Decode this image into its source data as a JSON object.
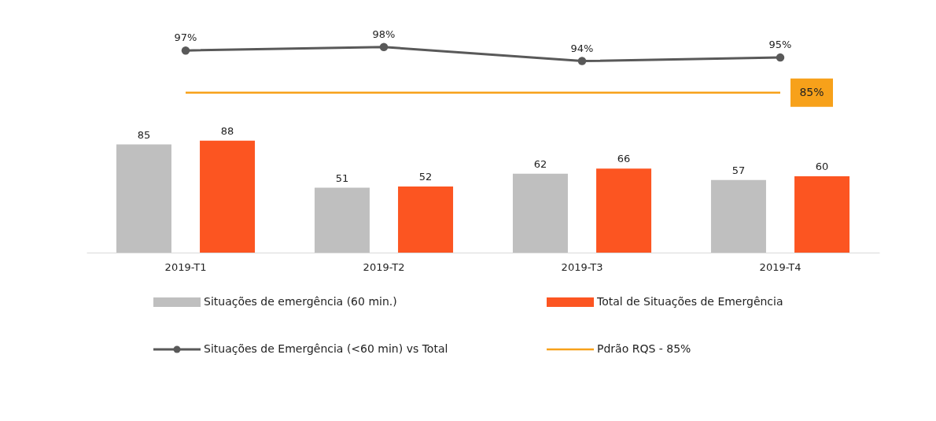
{
  "chart_data": [
    {
      "type": "line",
      "categories": [
        null,
        null,
        null,
        null
      ],
      "tick_labels": false,
      "grid": false,
      "legend": "bottom",
      "series": [
        {
          "name": "Situações de Emergência (<60 min) vs Total",
          "marker": "circle",
          "color": "#595959",
          "values": [
            97,
            98,
            94,
            95
          ],
          "value_labels": [
            "97%",
            "98%",
            "94%",
            "95%"
          ]
        },
        {
          "name": "Pdrão RQS - 85%",
          "marker": "none",
          "color": "#f7a11a",
          "values": [
            85,
            85,
            85,
            85
          ],
          "value_labels": [
            null,
            null,
            null,
            "85%"
          ]
        }
      ]
    },
    {
      "type": "bar",
      "categories": [
        "2019-T1",
        "2019-T2",
        "2019-T3",
        "2019-T4"
      ],
      "tick_labels": "x",
      "legend": "bottom",
      "grid": false,
      "data_labels": true,
      "series": [
        {
          "name": "Situações de emergência (60 min.)",
          "color": "#bfbfbf",
          "values": [
            85,
            51,
            62,
            57
          ]
        },
        {
          "name": "Total de Situações de Emergência",
          "color": "#fc5521",
          "values": [
            88,
            52,
            66,
            60
          ]
        }
      ]
    }
  ]
}
